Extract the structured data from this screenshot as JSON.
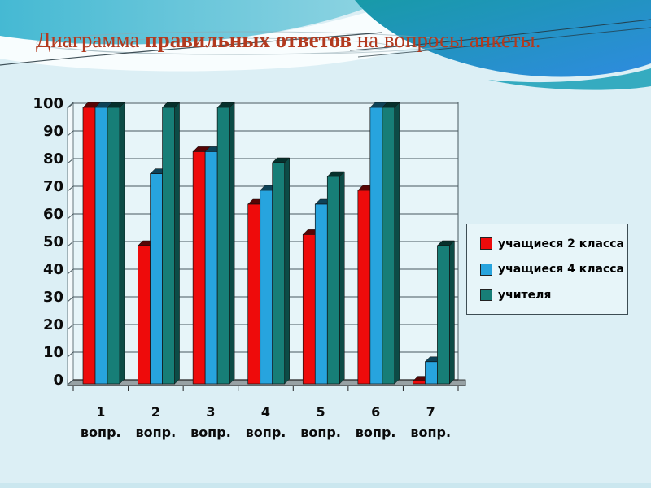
{
  "slide": {
    "title": {
      "part1": "Диаграмма ",
      "part2": "правильных ответов",
      "part3": " на вопросы анкеты."
    },
    "title_color": "#B23A1F"
  },
  "background": {
    "base": "#DCEFF5",
    "cyan_left": "#45B9D3",
    "cyan_right": "#8FD4E2",
    "blue_teal": "#189AA8",
    "blue_bright": "#2E8BDF",
    "band_teal": "#35ABC0",
    "white_band": "#F8FDFE",
    "swoosh_line": "#22343C",
    "ellipse_line": "#8FA8B0",
    "bottom_edge": "#C7E5EE"
  },
  "chart_data": {
    "type": "bar",
    "title": "",
    "xlabel": "",
    "ylabel": "",
    "categories": [
      "1",
      "2",
      "3",
      "4",
      "5",
      "6",
      "7"
    ],
    "category_suffix": "вопр.",
    "series": [
      {
        "name": "учащиеся 2 класса",
        "values": [
          100,
          50,
          84,
          65,
          54,
          70,
          1
        ],
        "color": "#EE0B0B",
        "side": "#9E0707",
        "top": "#560505"
      },
      {
        "name": "учащиеся 4 класса",
        "values": [
          100,
          76,
          84,
          70,
          65,
          100,
          8
        ],
        "color": "#27A4DE",
        "side": "#17719F",
        "top": "#0E4257"
      },
      {
        "name": "учителя",
        "values": [
          100,
          100,
          100,
          80,
          75,
          100,
          50
        ],
        "color": "#177E77",
        "side": "#0C4B46",
        "top": "#06302C"
      }
    ],
    "ylim": [
      0,
      100
    ],
    "yticks": [
      0,
      10,
      20,
      30,
      40,
      50,
      60,
      70,
      80,
      90,
      100
    ],
    "grid": true,
    "legend_position": "right",
    "plot_bg": "#E7F5F9",
    "grid_color": "#47585E",
    "axis_color": "#222222",
    "floor_color": "#97A1A4",
    "wall_color": "#F4FAFC",
    "text_color": "#0B0B0B"
  }
}
